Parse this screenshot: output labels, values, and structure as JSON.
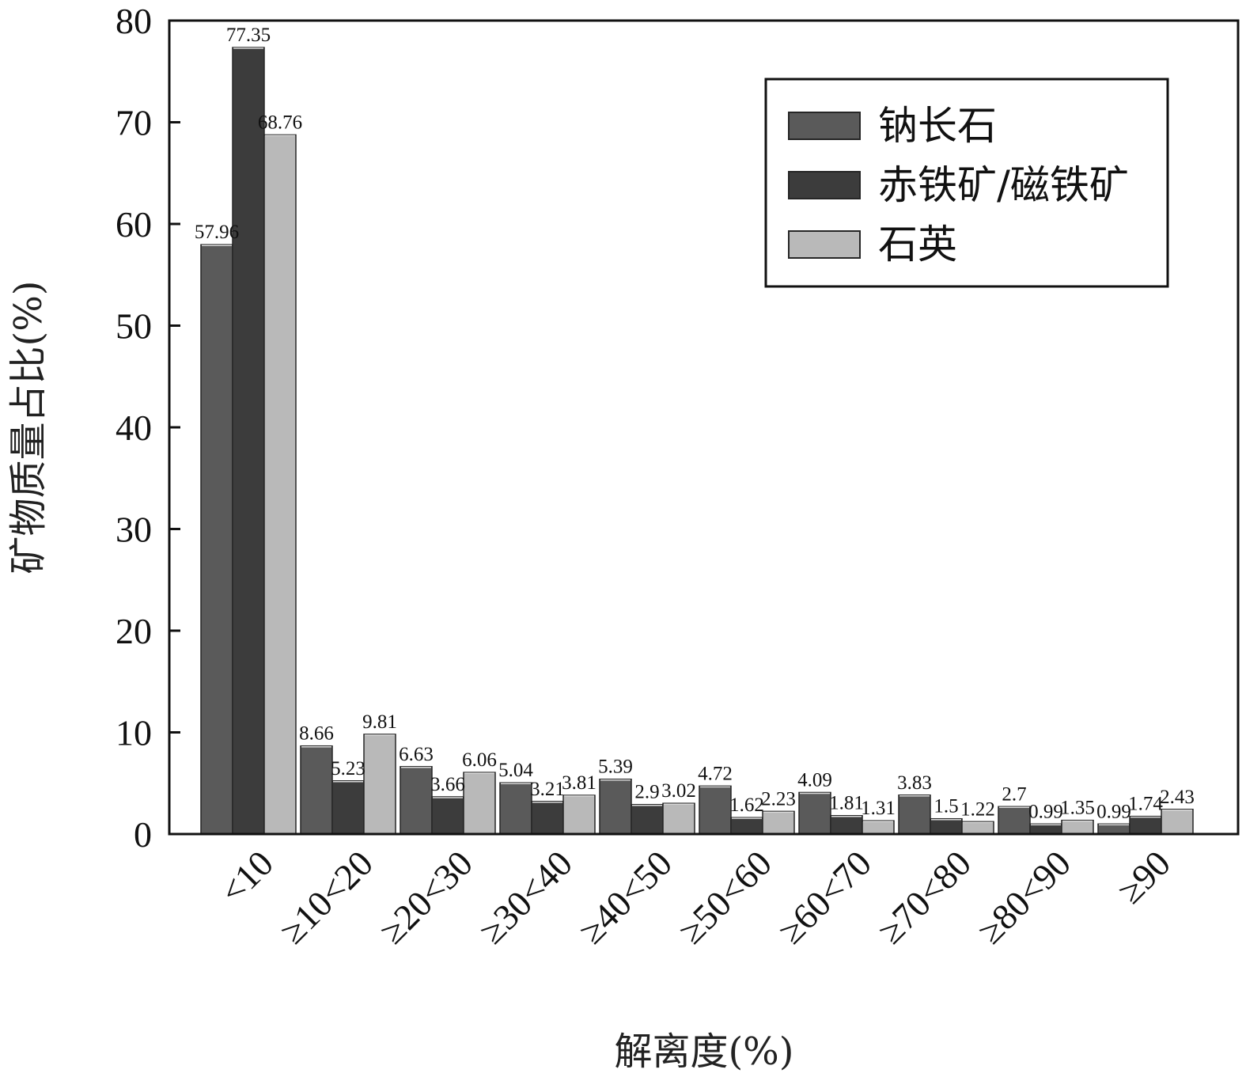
{
  "chart_data": {
    "type": "bar",
    "categories": [
      "<10",
      "≥10<20",
      "≥20<30",
      "≥30<40",
      "≥40<50",
      "≥50<60",
      "≥60<70",
      "≥70<80",
      "≥80<90",
      "≥90"
    ],
    "series": [
      {
        "name": "钠长石",
        "color": "#5a5a5a",
        "values": [
          57.96,
          8.66,
          6.63,
          5.04,
          5.39,
          4.72,
          4.09,
          3.83,
          2.7,
          0.99
        ]
      },
      {
        "name": "赤铁矿/磁铁矿",
        "color": "#3c3c3c",
        "values": [
          77.35,
          5.23,
          3.66,
          3.21,
          2.9,
          1.62,
          1.81,
          1.5,
          0.99,
          1.74
        ]
      },
      {
        "name": "石英",
        "color": "#b9b9b9",
        "values": [
          68.76,
          9.81,
          6.06,
          3.81,
          3.02,
          2.23,
          1.31,
          1.22,
          1.35,
          2.43
        ]
      }
    ],
    "xlabel": "解离度(%)",
    "ylabel": "矿物质量占比(%)",
    "ylim": [
      0,
      80
    ],
    "yticks": [
      0,
      10,
      20,
      30,
      40,
      50,
      60,
      70,
      80
    ],
    "legend_position": "top-right",
    "grid": false
  }
}
